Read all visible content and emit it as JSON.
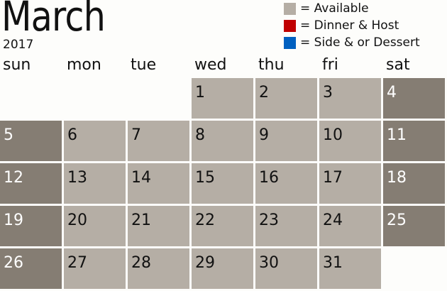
{
  "title": "March",
  "year": "2017",
  "legend": [
    {
      "label": "= Available",
      "color": "#b5aea5"
    },
    {
      "label": "= Dinner & Host",
      "color": "#c00000"
    },
    {
      "label": "= Side & or Dessert",
      "color": "#0060c0"
    }
  ],
  "weekdays": [
    "sun",
    "mon",
    "tue",
    "wed",
    "thu",
    "fri",
    "sat"
  ],
  "first_weekday_index": 3,
  "days": [
    "1",
    "2",
    "3",
    "4",
    "5",
    "6",
    "7",
    "8",
    "9",
    "10",
    "11",
    "12",
    "13",
    "14",
    "15",
    "16",
    "17",
    "18",
    "19",
    "20",
    "21",
    "22",
    "23",
    "24",
    "25",
    "26",
    "27",
    "28",
    "29",
    "30",
    "31"
  ],
  "colors": {
    "weekday": "#b5aea5",
    "weekend": "#857d73"
  }
}
